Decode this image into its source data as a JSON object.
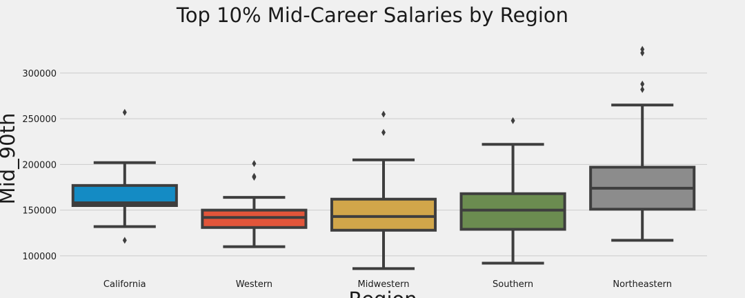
{
  "chart_data": {
    "type": "box",
    "title": "Top 10% Mid-Career Salaries by Region",
    "xlabel": "Region",
    "ylabel": "Mid_90th",
    "ylim": [
      78000,
      346000
    ],
    "yticks": [
      100000,
      150000,
      200000,
      250000,
      300000
    ],
    "ytick_labels": [
      "100000",
      "150000",
      "200000",
      "250000",
      "300000"
    ],
    "grid": "horizontal",
    "categories": [
      "California",
      "Western",
      "Midwestern",
      "Southern",
      "Northeastern"
    ],
    "colors": [
      "#148bc4",
      "#e2553a",
      "#d1a64a",
      "#6b8c50",
      "#8c8c8c"
    ],
    "line_color": "#3e3e3e",
    "boxes": [
      {
        "category": "California",
        "whislo": 132000,
        "q1": 155000,
        "med": 158000,
        "q3": 177000,
        "whishi": 202000,
        "fliers": [
          257000,
          117000
        ]
      },
      {
        "category": "Western",
        "whislo": 110000,
        "q1": 131000,
        "med": 142000,
        "q3": 150000,
        "whishi": 164000,
        "fliers": [
          201000,
          187000,
          186000
        ]
      },
      {
        "category": "Midwestern",
        "whislo": 86000,
        "q1": 128000,
        "med": 143000,
        "q3": 162000,
        "whishi": 205000,
        "fliers": [
          255000,
          235000
        ]
      },
      {
        "category": "Southern",
        "whislo": 92000,
        "q1": 129000,
        "med": 150000,
        "q3": 168000,
        "whishi": 222000,
        "fliers": [
          248000
        ]
      },
      {
        "category": "Northeastern",
        "whislo": 117000,
        "q1": 151000,
        "med": 174000,
        "q3": 197000,
        "whishi": 265000,
        "fliers": [
          326000,
          322000,
          288000,
          282000
        ]
      }
    ]
  }
}
